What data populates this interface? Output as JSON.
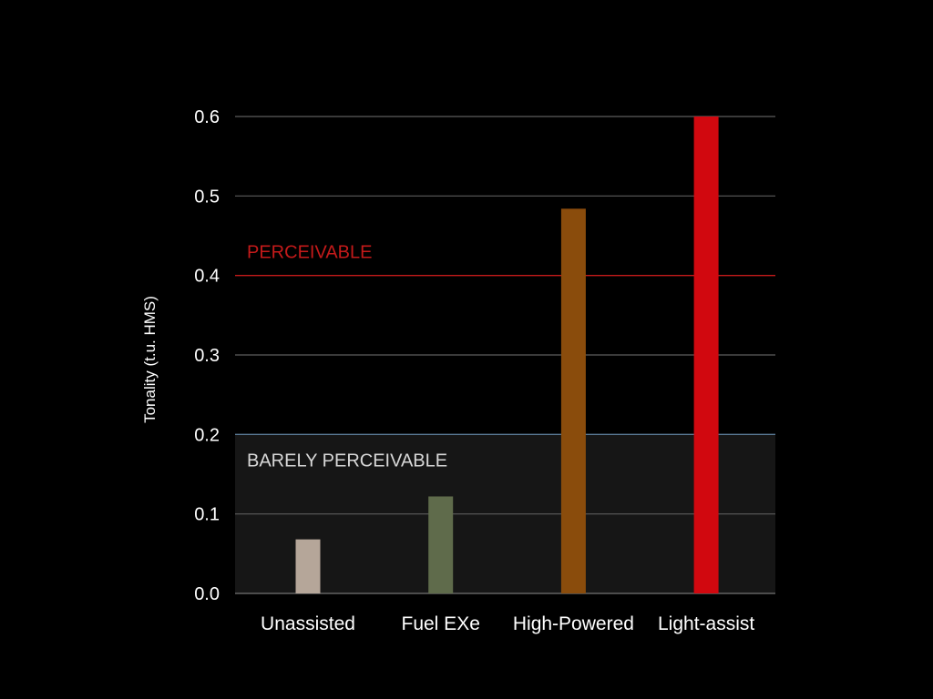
{
  "chart_data": {
    "type": "bar",
    "categories": [
      "Unassisted",
      "Fuel EXe",
      "High-Powered",
      "Light-assist"
    ],
    "values": [
      0.068,
      0.122,
      0.484,
      0.6
    ],
    "bar_colors": [
      "#b5a699",
      "#5f6b4b",
      "#8a4c0c",
      "#d1080f"
    ],
    "ylabel": "Tonality (t.u. HMS)",
    "xlabel": "",
    "ylim": [
      0.0,
      0.6
    ],
    "yticks": [
      "0.0",
      "0.1",
      "0.2",
      "0.3",
      "0.4",
      "0.5",
      "0.6"
    ],
    "grid": true,
    "thresholds": [
      {
        "label": "PERCEIVABLE",
        "value": 0.4,
        "color": "#c41a1a"
      },
      {
        "label": "BARELY PERCEIVABLE",
        "value": 0.2,
        "color": "#5a7a96"
      }
    ],
    "shaded_region": {
      "from": 0.0,
      "to": 0.2,
      "color": "#161616"
    }
  }
}
